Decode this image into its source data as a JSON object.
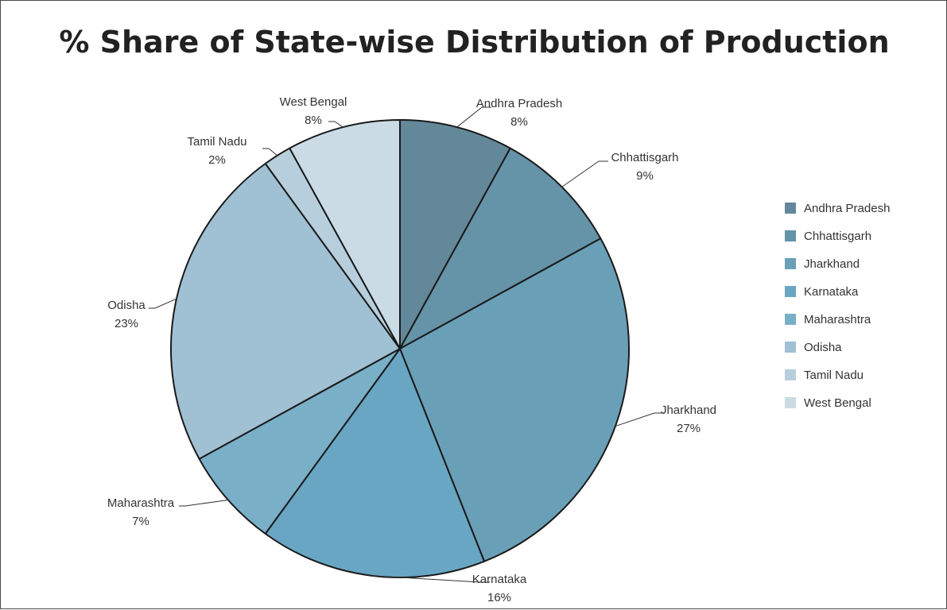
{
  "chart_data": {
    "type": "pie",
    "title": "% Share of State-wise Distribution of Production",
    "legend_position": "right",
    "slices": [
      {
        "name": "Andhra Pradesh",
        "value": 8,
        "label": "8%",
        "color": "#638899"
      },
      {
        "name": "Chhattisgarh",
        "value": 9,
        "label": "9%",
        "color": "#6593a8"
      },
      {
        "name": "Jharkhand",
        "value": 27,
        "label": "27%",
        "color": "#6aa0b7"
      },
      {
        "name": "Karnataka",
        "value": 16,
        "label": "16%",
        "color": "#68a6c3"
      },
      {
        "name": "Maharashtra",
        "value": 7,
        "label": "7%",
        "color": "#7aafc8"
      },
      {
        "name": "Odisha",
        "value": 23,
        "label": "23%",
        "color": "#a0c0d3"
      },
      {
        "name": "Tamil Nadu",
        "value": 2,
        "label": "2%",
        "color": "#b7cfdc"
      },
      {
        "name": "West Bengal",
        "value": 8,
        "label": "8%",
        "color": "#cadbe5"
      }
    ]
  }
}
